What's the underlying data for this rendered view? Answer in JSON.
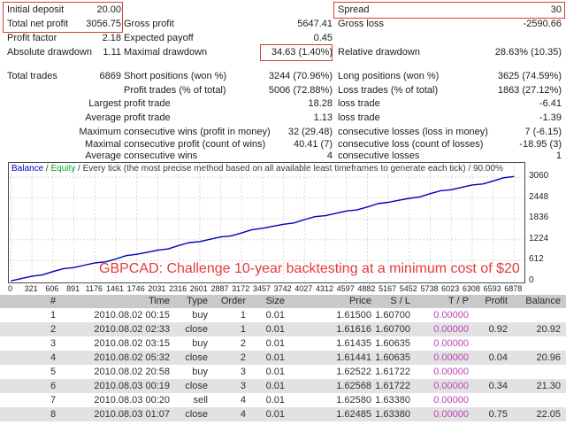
{
  "colors": {
    "highlight_red": "#cc4433",
    "balance_blue": "#0000b8",
    "equity_green": "#00aa22",
    "tp_magenta": "#bb44bb",
    "table_header_gray": "#c9c9c9",
    "table_alt_row": "#e2e2e2",
    "annotation_red": "#e23b3b"
  },
  "stats": {
    "rows": [
      {
        "l1": "Initial deposit",
        "v1": "20.00",
        "l2": "",
        "v2": "",
        "l3": "Spread",
        "v3": "30"
      },
      {
        "l1": "Total net profit",
        "v1": "3056.75",
        "l2": "Gross profit",
        "v2": "5647.41",
        "l3": "Gross loss",
        "v3": "-2590.66"
      },
      {
        "l1": "Profit factor",
        "v1": "2.18",
        "l2": "Expected payoff",
        "v2": "0.45",
        "l3": "",
        "v3": ""
      },
      {
        "l1": "Absolute drawdown",
        "v1": "1.11",
        "l2": "Maximal drawdown",
        "v2": "34.63 (1.40%)",
        "l3": "Relative drawdown",
        "v3": "28.63% (10.35)"
      },
      {
        "l1": "Total trades",
        "v1": "6869",
        "l2": "Short positions (won %)",
        "v2": "3244 (70.96%)",
        "l3": "Long positions (won %)",
        "v3": "3625 (74.59%)"
      },
      {
        "l1": "",
        "v1": "",
        "l2": "Profit trades (% of total)",
        "v2": "5006 (72.88%)",
        "l3": "Loss trades (% of total)",
        "v3": "1863 (27.12%)"
      },
      {
        "l1": "",
        "v1": "Largest",
        "l2": "profit trade",
        "v2": "18.28",
        "l3": "loss trade",
        "v3": "-6.41"
      },
      {
        "l1": "",
        "v1": "Average",
        "l2": "profit trade",
        "v2": "1.13",
        "l3": "loss trade",
        "v3": "-1.39"
      },
      {
        "l1": "",
        "v1": "Maximum",
        "l2": "consecutive wins (profit in money)",
        "v2": "32 (29.48)",
        "l3": "consecutive losses (loss in money)",
        "v3": "7 (-6.15)"
      },
      {
        "l1": "",
        "v1": "Maximal",
        "l2": "consecutive profit (count of wins)",
        "v2": "40.41 (7)",
        "l3": "consecutive loss (count of losses)",
        "v3": "-18.95 (3)"
      },
      {
        "l1": "",
        "v1": "Average",
        "l2": "consecutive wins",
        "v2": "4",
        "l3": "consecutive losses",
        "v3": "1"
      }
    ]
  },
  "chart_data": {
    "type": "line",
    "legend": {
      "balance_label": "Balance",
      "sep1": " / ",
      "equity_label": "Equity",
      "sep2": " / ",
      "mode": "Every tick (the most precise method based on all available least timeframes to generate each tick)",
      "sep3": " / ",
      "quality": "90.00%"
    },
    "x_ticks": [
      0,
      321,
      606,
      891,
      1176,
      1461,
      1746,
      2031,
      2316,
      2601,
      2887,
      3172,
      3457,
      3742,
      4027,
      4312,
      4597,
      4882,
      5167,
      5452,
      5738,
      6023,
      6308,
      6593,
      6878
    ],
    "y_ticks": [
      3060,
      2448,
      1836,
      1224,
      612,
      0
    ],
    "y_axis_bottom_label": "0",
    "xlabel": "",
    "ylabel": "",
    "ylim": [
      0,
      3200
    ],
    "grid": true,
    "series": [
      {
        "name": "Balance",
        "color": "#0000b8",
        "x": [
          0,
          321,
          606,
          891,
          1176,
          1461,
          1746,
          2031,
          2316,
          2601,
          2887,
          3172,
          3457,
          3742,
          4027,
          4312,
          4597,
          4882,
          5167,
          5452,
          5738,
          6023,
          6308,
          6593,
          6878
        ],
        "values": [
          20,
          158,
          292,
          410,
          548,
          662,
          800,
          918,
          1055,
          1170,
          1308,
          1424,
          1560,
          1678,
          1815,
          1930,
          2068,
          2184,
          2322,
          2438,
          2575,
          2690,
          2830,
          2945,
          3077
        ]
      }
    ],
    "annotation": {
      "text": "GBPCAD: Challenge 10-year backtesting at a minimum cost of $20"
    }
  },
  "trades": {
    "headers": [
      "#",
      "Time",
      "Type",
      "Order",
      "Size",
      "Price",
      "S / L",
      "T / P",
      "Profit",
      "Balance"
    ],
    "rows": [
      {
        "n": "1",
        "time": "2010.08.02 00:15",
        "type": "buy",
        "order": "1",
        "size": "0.01",
        "price": "1.61500",
        "sl": "1.60700",
        "tp": "0.00000",
        "profit": "",
        "balance": ""
      },
      {
        "n": "2",
        "time": "2010.08.02 02:33",
        "type": "close",
        "order": "1",
        "size": "0.01",
        "price": "1.61616",
        "sl": "1.60700",
        "tp": "0.00000",
        "profit": "0.92",
        "balance": "20.92"
      },
      {
        "n": "3",
        "time": "2010.08.02 03:15",
        "type": "buy",
        "order": "2",
        "size": "0.01",
        "price": "1.61435",
        "sl": "1.60635",
        "tp": "0.00000",
        "profit": "",
        "balance": ""
      },
      {
        "n": "4",
        "time": "2010.08.02 05:32",
        "type": "close",
        "order": "2",
        "size": "0.01",
        "price": "1.61441",
        "sl": "1.60635",
        "tp": "0.00000",
        "profit": "0.04",
        "balance": "20.96"
      },
      {
        "n": "5",
        "time": "2010.08.02 20:58",
        "type": "buy",
        "order": "3",
        "size": "0.01",
        "price": "1.62522",
        "sl": "1.61722",
        "tp": "0.00000",
        "profit": "",
        "balance": ""
      },
      {
        "n": "6",
        "time": "2010.08.03 00:19",
        "type": "close",
        "order": "3",
        "size": "0.01",
        "price": "1.62568",
        "sl": "1.61722",
        "tp": "0.00000",
        "profit": "0.34",
        "balance": "21.30"
      },
      {
        "n": "7",
        "time": "2010.08.03 00:20",
        "type": "sell",
        "order": "4",
        "size": "0.01",
        "price": "1.62580",
        "sl": "1.63380",
        "tp": "0.00000",
        "profit": "",
        "balance": ""
      },
      {
        "n": "8",
        "time": "2010.08.03 01:07",
        "type": "close",
        "order": "4",
        "size": "0.01",
        "price": "1.62485",
        "sl": "1.63380",
        "tp": "0.00000",
        "profit": "0.75",
        "balance": "22.05"
      }
    ]
  }
}
